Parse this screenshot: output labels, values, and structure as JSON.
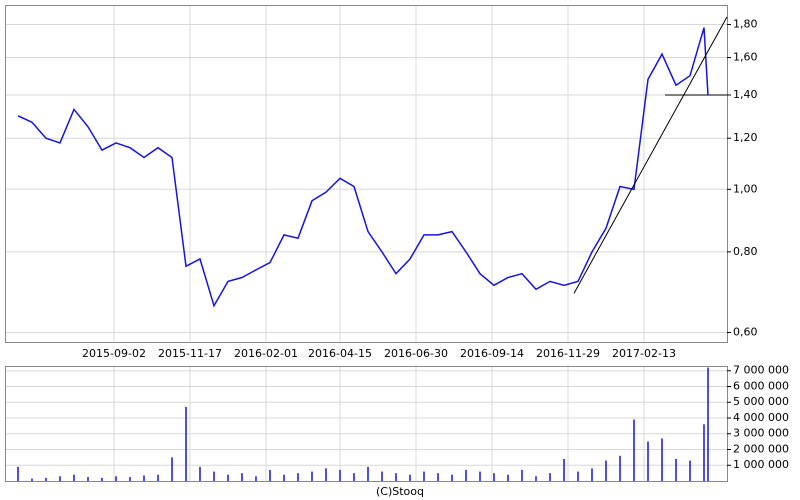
{
  "footer": "(C)Stooq",
  "chart_data": [
    {
      "type": "line",
      "log_scale": true,
      "grid": true,
      "color": "#1414e6",
      "x": [
        "2015-05-29",
        "2015-06-12",
        "2015-06-26",
        "2015-07-10",
        "2015-07-24",
        "2015-08-07",
        "2015-08-21",
        "2015-09-04",
        "2015-09-18",
        "2015-10-02",
        "2015-10-16",
        "2015-10-30",
        "2015-11-13",
        "2015-11-27",
        "2015-12-11",
        "2015-12-25",
        "2016-01-08",
        "2016-01-22",
        "2016-02-05",
        "2016-02-19",
        "2016-03-04",
        "2016-03-18",
        "2016-04-01",
        "2016-04-15",
        "2016-04-29",
        "2016-05-13",
        "2016-05-27",
        "2016-06-10",
        "2016-06-24",
        "2016-07-08",
        "2016-07-22",
        "2016-08-05",
        "2016-08-19",
        "2016-09-02",
        "2016-09-16",
        "2016-09-30",
        "2016-10-14",
        "2016-10-28",
        "2016-11-11",
        "2016-11-25",
        "2016-12-09",
        "2016-12-23",
        "2017-01-06",
        "2017-01-20",
        "2017-02-03",
        "2017-02-17",
        "2017-03-03",
        "2017-03-17",
        "2017-03-31",
        "2017-04-14",
        "2017-04-18"
      ],
      "values": [
        1.3,
        1.27,
        1.2,
        1.18,
        1.33,
        1.25,
        1.15,
        1.18,
        1.16,
        1.12,
        1.16,
        1.12,
        0.76,
        0.78,
        0.66,
        0.72,
        0.73,
        0.75,
        0.77,
        0.85,
        0.84,
        0.96,
        0.99,
        1.04,
        1.01,
        0.86,
        0.8,
        0.74,
        0.78,
        0.85,
        0.85,
        0.86,
        0.8,
        0.74,
        0.71,
        0.73,
        0.74,
        0.7,
        0.72,
        0.71,
        0.72,
        0.8,
        0.87,
        1.01,
        1.0,
        1.48,
        1.62,
        1.45,
        1.5,
        1.78,
        1.4
      ],
      "xlim": [
        "2015-05-16",
        "2017-05-07"
      ],
      "xticks": [
        "2015-09-02",
        "2015-11-17",
        "2016-02-01",
        "2016-04-15",
        "2016-06-30",
        "2016-09-14",
        "2016-11-29",
        "2017-02-13"
      ],
      "ylim": [
        0.58,
        1.93
      ],
      "yticks": [
        {
          "value": 0.6,
          "label": "0,60"
        },
        {
          "value": 0.8,
          "label": "0,80"
        },
        {
          "value": 1.0,
          "label": "1,00"
        },
        {
          "value": 1.2,
          "label": "1,20"
        },
        {
          "value": 1.4,
          "label": "1,40"
        },
        {
          "value": 1.6,
          "label": "1,60"
        },
        {
          "value": 1.8,
          "label": "1,80"
        }
      ],
      "trendlines": [
        {
          "x": [
            "2016-12-05",
            "2017-05-07"
          ],
          "y": [
            0.69,
            1.85
          ]
        },
        {
          "x": [
            "2017-03-06",
            "2017-05-07"
          ],
          "y": [
            1.4,
            1.4
          ]
        }
      ]
    },
    {
      "type": "bar",
      "grid": true,
      "color": "#1414e6",
      "x": [
        "2015-05-29",
        "2015-06-12",
        "2015-06-26",
        "2015-07-10",
        "2015-07-24",
        "2015-08-07",
        "2015-08-21",
        "2015-09-04",
        "2015-09-18",
        "2015-10-02",
        "2015-10-16",
        "2015-10-30",
        "2015-11-13",
        "2015-11-27",
        "2015-12-11",
        "2015-12-25",
        "2016-01-08",
        "2016-01-22",
        "2016-02-05",
        "2016-02-19",
        "2016-03-04",
        "2016-03-18",
        "2016-04-01",
        "2016-04-15",
        "2016-04-29",
        "2016-05-13",
        "2016-05-27",
        "2016-06-10",
        "2016-06-24",
        "2016-07-08",
        "2016-07-22",
        "2016-08-05",
        "2016-08-19",
        "2016-09-02",
        "2016-09-16",
        "2016-09-30",
        "2016-10-14",
        "2016-10-28",
        "2016-11-11",
        "2016-11-25",
        "2016-12-09",
        "2016-12-23",
        "2017-01-06",
        "2017-01-20",
        "2017-02-03",
        "2017-02-17",
        "2017-03-03",
        "2017-03-17",
        "2017-03-31",
        "2017-04-14",
        "2017-04-18"
      ],
      "values": [
        900000,
        150000,
        200000,
        300000,
        400000,
        250000,
        200000,
        300000,
        250000,
        350000,
        400000,
        1500000,
        4700000,
        900000,
        600000,
        400000,
        500000,
        300000,
        700000,
        400000,
        500000,
        600000,
        800000,
        700000,
        500000,
        900000,
        600000,
        500000,
        400000,
        600000,
        500000,
        400000,
        700000,
        600000,
        500000,
        400000,
        700000,
        300000,
        500000,
        1400000,
        600000,
        800000,
        1300000,
        1600000,
        3900000,
        2500000,
        2700000,
        1400000,
        1300000,
        3600000,
        7200000
      ],
      "xlim": [
        "2015-05-16",
        "2017-05-07"
      ],
      "xticks": [
        "2015-09-02",
        "2015-11-17",
        "2016-02-01",
        "2016-04-15",
        "2016-06-30",
        "2016-09-14",
        "2016-11-29",
        "2017-02-13"
      ],
      "ylim": [
        0,
        7300000
      ],
      "yticks": [
        {
          "value": 1000000,
          "label": "1 000 000"
        },
        {
          "value": 2000000,
          "label": "2 000 000"
        },
        {
          "value": 3000000,
          "label": "3 000 000"
        },
        {
          "value": 4000000,
          "label": "4 000 000"
        },
        {
          "value": 5000000,
          "label": "5 000 000"
        },
        {
          "value": 6000000,
          "label": "6 000 000"
        },
        {
          "value": 7000000,
          "label": "7 000 000"
        }
      ]
    }
  ]
}
